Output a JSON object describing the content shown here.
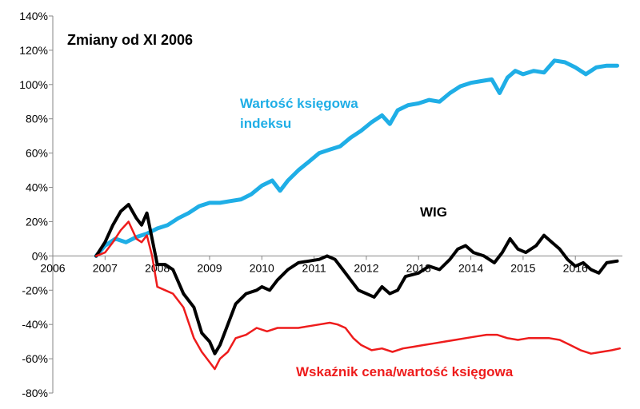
{
  "chart_data": {
    "type": "line",
    "title": "Zmiany od XI 2006",
    "xlabel": "",
    "ylabel": "",
    "xlim": [
      2006,
      2016.9
    ],
    "ylim": [
      -80,
      140
    ],
    "x_ticks": [
      2006,
      2007,
      2008,
      2009,
      2010,
      2011,
      2012,
      2013,
      2014,
      2015,
      2016
    ],
    "x_tick_labels": [
      "2006",
      "2007",
      "2008",
      "2009",
      "2010",
      "2011",
      "2012",
      "2013",
      "2014",
      "2015",
      "2016"
    ],
    "y_ticks": [
      -80,
      -60,
      -40,
      -20,
      0,
      20,
      40,
      60,
      80,
      100,
      120,
      140
    ],
    "y_tick_labels": [
      "-80%",
      "-60%",
      "-40%",
      "-20%",
      "0%",
      "20%",
      "40%",
      "60%",
      "80%",
      "100%",
      "120%",
      "140%"
    ],
    "grid": false,
    "series": [
      {
        "name": "Wartość księgowa indeksu",
        "label_lines": [
          "Wartość księgowa",
          "indeksu"
        ],
        "color": "#1faee6",
        "x": [
          2006.83,
          2007.0,
          2007.2,
          2007.4,
          2007.6,
          2007.8,
          2008.0,
          2008.2,
          2008.4,
          2008.6,
          2008.8,
          2009.0,
          2009.2,
          2009.4,
          2009.6,
          2009.8,
          2010.0,
          2010.2,
          2010.35,
          2010.5,
          2010.7,
          2010.9,
          2011.1,
          2011.3,
          2011.5,
          2011.7,
          2011.9,
          2012.1,
          2012.3,
          2012.45,
          2012.6,
          2012.8,
          2013.0,
          2013.2,
          2013.4,
          2013.6,
          2013.8,
          2014.0,
          2014.2,
          2014.4,
          2014.55,
          2014.7,
          2014.85,
          2015.0,
          2015.2,
          2015.4,
          2015.6,
          2015.8,
          2016.0,
          2016.2,
          2016.4,
          2016.6,
          2016.8
        ],
        "y": [
          0,
          6,
          10,
          8,
          11,
          13,
          16,
          18,
          22,
          25,
          29,
          31,
          31,
          32,
          33,
          36,
          41,
          44,
          38,
          44,
          50,
          55,
          60,
          62,
          64,
          69,
          73,
          78,
          82,
          77,
          85,
          88,
          89,
          91,
          90,
          95,
          99,
          101,
          102,
          103,
          95,
          104,
          108,
          106,
          108,
          107,
          114,
          113,
          110,
          106,
          110,
          111,
          111
        ]
      },
      {
        "name": "WIG",
        "label_lines": [
          "WIG"
        ],
        "color": "#000000",
        "x": [
          2006.83,
          2007.0,
          2007.15,
          2007.3,
          2007.45,
          2007.6,
          2007.7,
          2007.8,
          2007.9,
          2008.0,
          2008.15,
          2008.3,
          2008.5,
          2008.7,
          2008.85,
          2009.0,
          2009.1,
          2009.2,
          2009.35,
          2009.5,
          2009.7,
          2009.9,
          2010.0,
          2010.15,
          2010.3,
          2010.5,
          2010.7,
          2010.9,
          2011.1,
          2011.25,
          2011.4,
          2011.55,
          2011.7,
          2011.85,
          2012.0,
          2012.15,
          2012.3,
          2012.45,
          2012.6,
          2012.75,
          2013.0,
          2013.2,
          2013.4,
          2013.6,
          2013.75,
          2013.9,
          2014.05,
          2014.25,
          2014.45,
          2014.6,
          2014.75,
          2014.9,
          2015.05,
          2015.25,
          2015.4,
          2015.55,
          2015.7,
          2015.85,
          2016.0,
          2016.15,
          2016.3,
          2016.45,
          2016.6,
          2016.8
        ],
        "y": [
          0,
          8,
          18,
          26,
          30,
          22,
          18,
          25,
          10,
          -5,
          -5,
          -8,
          -22,
          -30,
          -45,
          -50,
          -57,
          -52,
          -40,
          -28,
          -22,
          -20,
          -18,
          -20,
          -14,
          -8,
          -4,
          -3,
          -2,
          0,
          -2,
          -8,
          -14,
          -20,
          -22,
          -24,
          -18,
          -22,
          -20,
          -12,
          -10,
          -6,
          -8,
          -2,
          4,
          6,
          2,
          0,
          -4,
          2,
          10,
          4,
          2,
          6,
          12,
          8,
          4,
          -2,
          -6,
          -4,
          -8,
          -10,
          -4,
          -3
        ]
      },
      {
        "name": "Wskaźnik cena/wartość księgowa",
        "label_lines": [
          "Wskaźnik cena/wartość księgowa"
        ],
        "color": "#ee1c1c",
        "x": [
          2006.83,
          2007.0,
          2007.15,
          2007.3,
          2007.45,
          2007.6,
          2007.7,
          2007.8,
          2007.9,
          2008.0,
          2008.15,
          2008.3,
          2008.5,
          2008.7,
          2008.85,
          2009.0,
          2009.1,
          2009.2,
          2009.35,
          2009.5,
          2009.7,
          2009.9,
          2010.1,
          2010.3,
          2010.5,
          2010.7,
          2010.9,
          2011.1,
          2011.3,
          2011.45,
          2011.6,
          2011.75,
          2011.9,
          2012.1,
          2012.3,
          2012.5,
          2012.7,
          2012.9,
          2013.1,
          2013.3,
          2013.5,
          2013.7,
          2013.9,
          2014.1,
          2014.3,
          2014.5,
          2014.7,
          2014.9,
          2015.1,
          2015.3,
          2015.5,
          2015.7,
          2015.9,
          2016.1,
          2016.3,
          2016.5,
          2016.7,
          2016.85
        ],
        "y": [
          0,
          2,
          8,
          15,
          20,
          10,
          8,
          12,
          0,
          -18,
          -20,
          -22,
          -30,
          -48,
          -56,
          -62,
          -66,
          -60,
          -56,
          -48,
          -46,
          -42,
          -44,
          -42,
          -42,
          -42,
          -41,
          -40,
          -39,
          -40,
          -42,
          -48,
          -52,
          -55,
          -54,
          -56,
          -54,
          -53,
          -52,
          -51,
          -50,
          -49,
          -48,
          -47,
          -46,
          -46,
          -48,
          -49,
          -48,
          -48,
          -48,
          -49,
          -52,
          -55,
          -57,
          -56,
          -55,
          -54
        ]
      }
    ],
    "annotations": [
      {
        "text": "Zmiany od XI 2006",
        "role": "title"
      }
    ]
  }
}
